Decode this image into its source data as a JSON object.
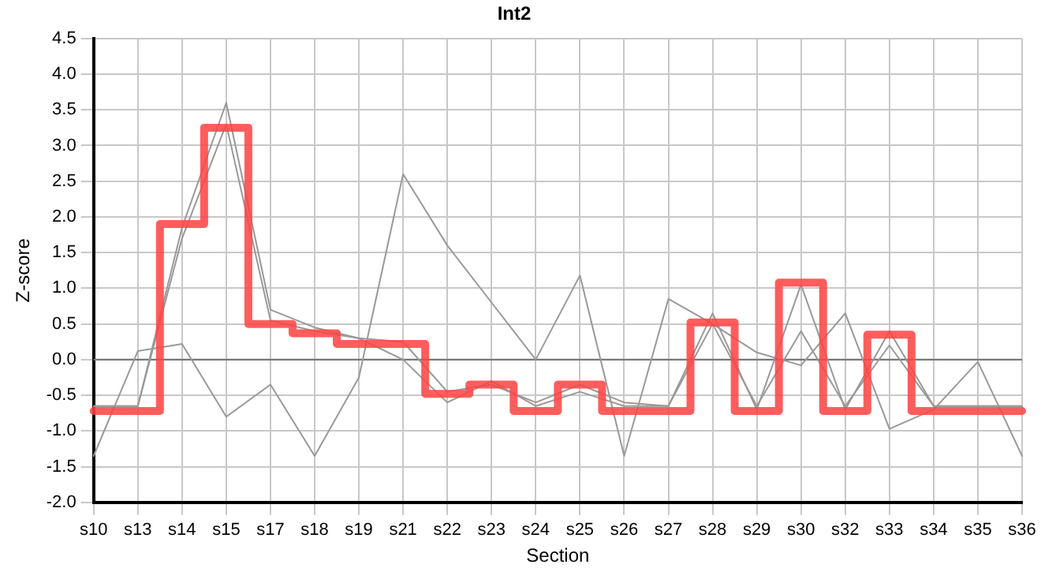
{
  "chart_data": {
    "type": "line",
    "title": "Int2",
    "xlabel": "Section",
    "ylabel": "Z-score",
    "categories": [
      "s10",
      "s13",
      "s14",
      "s15",
      "s17",
      "s18",
      "s19",
      "s21",
      "s22",
      "s23",
      "s24",
      "s25",
      "s26",
      "s27",
      "s28",
      "s29",
      "s30",
      "s32",
      "s33",
      "s34",
      "s35",
      "s36"
    ],
    "series": [
      {
        "color": "#999999",
        "values": [
          -1.35,
          0.12,
          0.22,
          -0.8,
          -0.35,
          -1.35,
          -0.25,
          2.6,
          1.6,
          0.8,
          0.0,
          1.18,
          -1.35,
          0.85,
          0.5,
          0.1,
          -0.08,
          0.65,
          -0.97,
          -0.7,
          -0.03,
          -1.35
        ]
      },
      {
        "color": "#999999",
        "values": [
          -0.65,
          -0.65,
          1.85,
          3.6,
          0.7,
          0.45,
          0.3,
          0.0,
          -0.6,
          -0.3,
          -0.65,
          -0.45,
          -0.65,
          -0.65,
          0.65,
          -0.7,
          1.05,
          -0.7,
          0.4,
          -0.65,
          -0.65,
          -0.65
        ]
      },
      {
        "color": "#999999",
        "values": [
          -0.65,
          -0.65,
          1.7,
          3.3,
          0.55,
          0.4,
          0.3,
          0.25,
          -0.45,
          -0.35,
          -0.6,
          -0.35,
          -0.6,
          -0.65,
          0.5,
          -0.65,
          0.4,
          -0.65,
          0.2,
          -0.65,
          -0.65,
          -0.65
        ]
      },
      {
        "type": "step",
        "color": "#ff4444",
        "values": [
          -0.72,
          -0.72,
          1.9,
          3.25,
          0.5,
          0.37,
          0.22,
          0.22,
          -0.48,
          -0.35,
          -0.72,
          -0.35,
          -0.72,
          -0.72,
          0.52,
          -0.72,
          1.08,
          -0.72,
          0.35,
          -0.72,
          -0.72,
          -0.72
        ]
      }
    ],
    "ylim": [
      -2,
      4.5
    ],
    "yticks": [
      {
        "value": -2,
        "label": "-2.0"
      },
      {
        "value": -1.5,
        "label": "-1.5"
      },
      {
        "value": -1,
        "label": "-1.0"
      },
      {
        "value": -0.5,
        "label": "-0.5"
      },
      {
        "value": 0,
        "label": "0.0"
      },
      {
        "value": 0.5,
        "label": "0.5"
      },
      {
        "value": 1,
        "label": "1.0"
      },
      {
        "value": 1.5,
        "label": "1.5"
      },
      {
        "value": 2,
        "label": "2.0"
      },
      {
        "value": 2.5,
        "label": "2.5"
      },
      {
        "value": 3,
        "label": "3.0"
      },
      {
        "value": 3.5,
        "label": "3.5"
      },
      {
        "value": 4,
        "label": "4.0"
      },
      {
        "value": 4.5,
        "label": "4.5"
      }
    ],
    "ref_lines": [
      {
        "axis": "y",
        "value": 0,
        "color": "#777777"
      }
    ],
    "grid": true,
    "legend": false,
    "marker": "none"
  }
}
